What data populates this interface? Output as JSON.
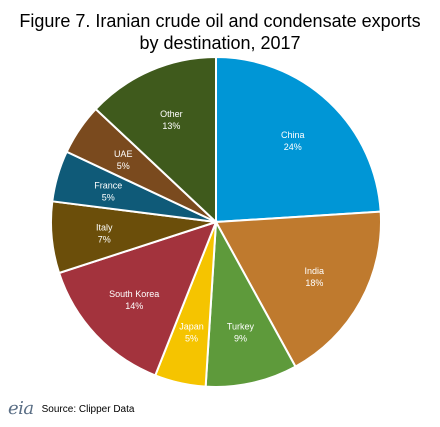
{
  "chart_data": {
    "type": "pie",
    "title_line1": "Figure 7. Iranian crude oil and condensate exports",
    "title_line2": "by destination, 2017",
    "slices": [
      {
        "label": "China",
        "pct_label": "24%",
        "value": 24,
        "color": "#0096d6"
      },
      {
        "label": "India",
        "pct_label": "18%",
        "value": 18,
        "color": "#bf7a2e"
      },
      {
        "label": "Turkey",
        "pct_label": "9%",
        "value": 9,
        "color": "#5e9a3b"
      },
      {
        "label": "Japan",
        "pct_label": "5%",
        "value": 5,
        "color": "#f5c400"
      },
      {
        "label": "South Korea",
        "pct_label": "14%",
        "value": 14,
        "color": "#a3333d"
      },
      {
        "label": "Italy",
        "pct_label": "7%",
        "value": 7,
        "color": "#6b4e0a"
      },
      {
        "label": "France",
        "pct_label": "5%",
        "value": 5,
        "color": "#0f5a78"
      },
      {
        "label": "UAE",
        "pct_label": "5%",
        "value": 5,
        "color": "#7a4a1e"
      },
      {
        "label": "Other",
        "pct_label": "13%",
        "value": 13,
        "color": "#3f5a1c"
      }
    ]
  },
  "footer": {
    "logo_text": "eia",
    "source": "Source: Clipper Data"
  }
}
